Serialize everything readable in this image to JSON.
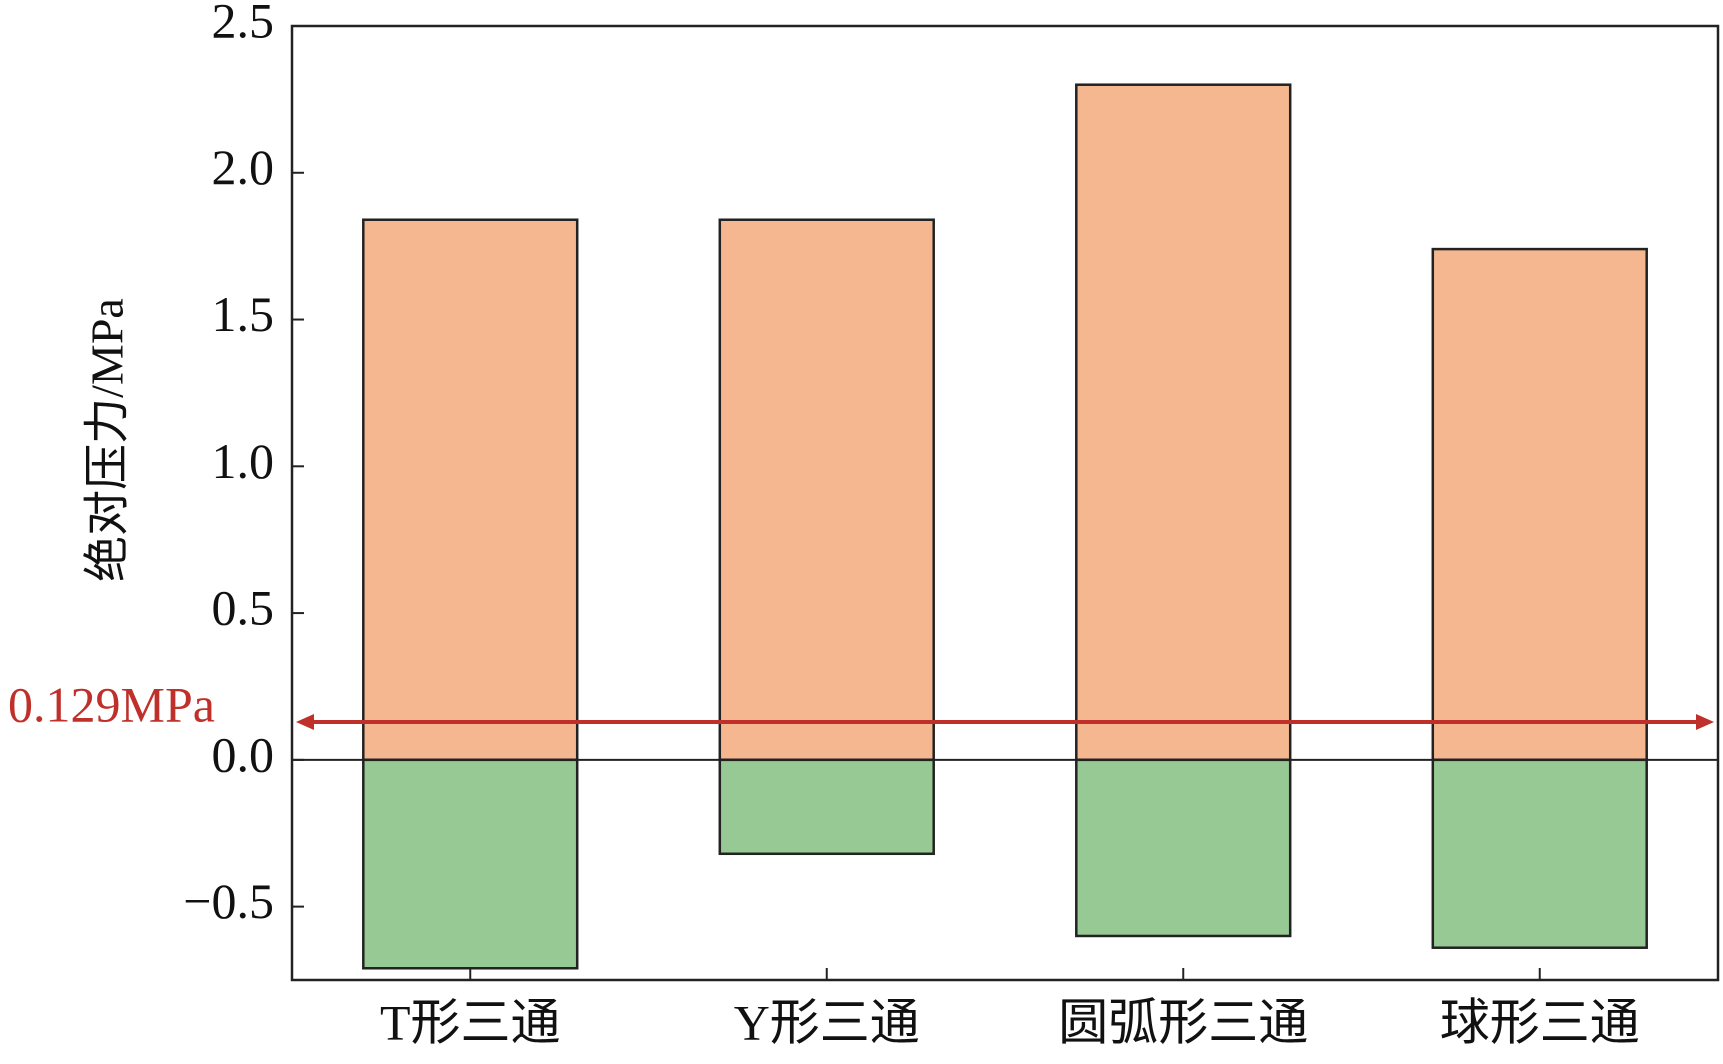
{
  "chart_data": {
    "type": "bar",
    "y_label": "绝对压力/MPa",
    "categories": [
      "T形三通",
      "Y形三通",
      "圆弧形三通",
      "球形三通"
    ],
    "series": [
      {
        "color": "#f4b78f",
        "values": [
          1.84,
          1.84,
          2.3,
          1.74
        ]
      },
      {
        "color": "#96c993",
        "values": [
          -0.71,
          -0.32,
          -0.6,
          -0.64
        ]
      }
    ],
    "ylim": [
      -0.75,
      2.5
    ],
    "yticks": [
      {
        "value": -0.5,
        "label": "−0.5"
      },
      {
        "value": 0,
        "label": "0.0"
      },
      0.5,
      {
        "value": 1,
        "label": "1.0"
      },
      1.5,
      {
        "value": 2,
        "label": "2.0"
      },
      2.5
    ],
    "reference_line": {
      "value": 0.129,
      "label": "0.129MPa",
      "color": "#c0302b"
    }
  }
}
